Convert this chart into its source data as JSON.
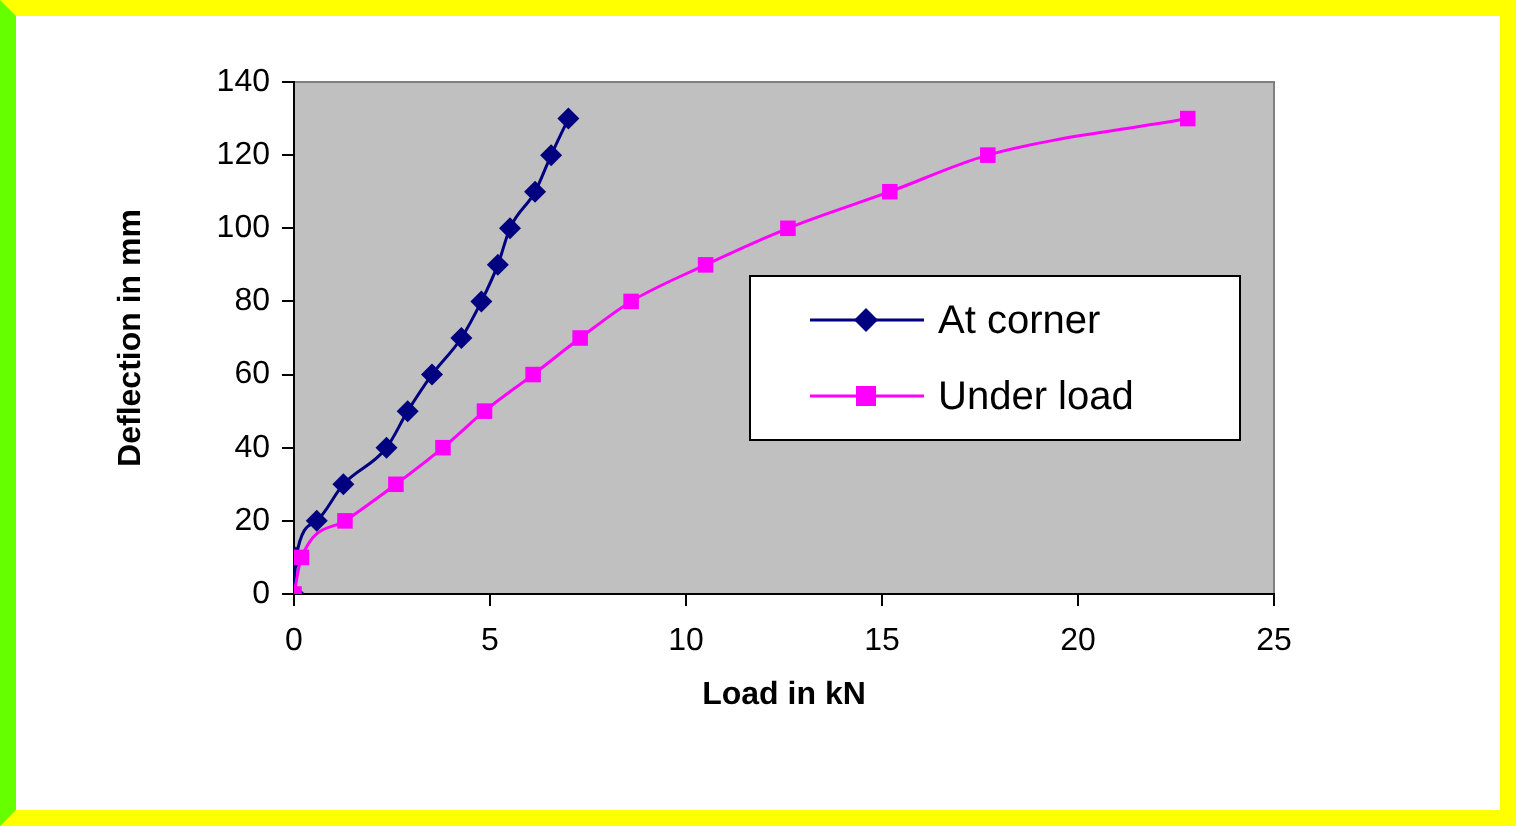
{
  "chart_data": {
    "type": "line",
    "xlabel": "Load in kN",
    "ylabel": "Deflection in mm",
    "xlim": [
      0,
      25
    ],
    "xticks": [
      0,
      5,
      10,
      15,
      20,
      25
    ],
    "ylim": [
      0,
      140
    ],
    "yticks": [
      0,
      20,
      40,
      60,
      80,
      100,
      120,
      140
    ],
    "grid": false,
    "legend": "right",
    "series": [
      {
        "name": "At corner",
        "color": "#000080",
        "marker": "diamond",
        "x": [
          0,
          0.05,
          0.58,
          1.26,
          2.36,
          2.9,
          3.52,
          4.27,
          4.78,
          5.2,
          5.51,
          6.15,
          6.56,
          7.0
        ],
        "values": [
          0,
          10,
          20,
          30,
          40,
          50,
          60,
          70,
          80,
          90,
          100,
          110,
          120,
          130
        ]
      },
      {
        "name": "Under load",
        "color": "#ff00ff",
        "marker": "square",
        "x": [
          0,
          0.19,
          1.3,
          2.6,
          3.8,
          4.86,
          6.1,
          7.3,
          8.6,
          10.5,
          12.6,
          15.2,
          17.7,
          22.8
        ],
        "values": [
          0,
          10,
          20,
          30,
          40,
          50,
          60,
          70,
          80,
          90,
          100,
          110,
          120,
          130
        ]
      }
    ]
  }
}
